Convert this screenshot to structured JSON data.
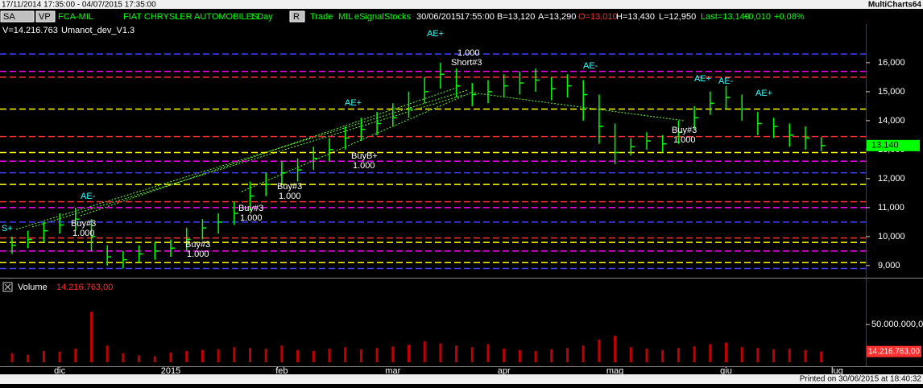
{
  "window": {
    "range": "17/11/2014 17:35:00 - 04/07/2015 17:35:00",
    "app": "MultiCharts64"
  },
  "toolbar": [
    "SA",
    "VP",
    "FCA-MIL",
    "FIAT CHRYSLER AUTOMOBILES",
    "1 Day",
    "R",
    "Trade",
    "MIL",
    "eSignal",
    "Stocks",
    "30/06/2015",
    "17:55:00",
    "B=13,120",
    "A=13,290",
    "O=13,010",
    "H=13,430",
    "L=12,950",
    "Last=13,140",
    "+0,010",
    "+0,08%"
  ],
  "info": [
    "V=14.216.763",
    "Umanot_dev_V1.3"
  ],
  "footer": "Printed on 30/06/2015 at 18:40:32",
  "annotations": [
    "AE+",
    "1.000",
    "Short#3",
    "BuyB+",
    "1.000",
    "Buy#3",
    "1.000",
    "Buy#3",
    "1.000",
    "Buy#3",
    "1.000",
    "Buy#3",
    "1.000",
    "Buy#3",
    "1.000",
    "AE+",
    "AE-",
    "AE-",
    "AE+",
    "AE-",
    "AE+",
    "S+"
  ],
  "chart_data": [
    {
      "type": "ohlc",
      "color": "#00ff00",
      "close": [
        9.7,
        9.9,
        10.2,
        10.4,
        10.6,
        10.0,
        9.3,
        9.2,
        9.4,
        9.5,
        9.6,
        9.9,
        10.3,
        10.5,
        10.8,
        11.4,
        11.8,
        12.2,
        12.3,
        12.7,
        13.0,
        13.4,
        13.7,
        13.9,
        14.1,
        14.4,
        15.0,
        15.6,
        15.2,
        14.9,
        15.0,
        15.2,
        15.3,
        15.4,
        15.1,
        15.2,
        14.9,
        13.8,
        12.9,
        13.1,
        13.3,
        13.2,
        13.6,
        14.1,
        14.6,
        14.8,
        14.4,
        13.9,
        13.8,
        13.5,
        13.4,
        13.14,
        null
      ],
      "high": [
        10.0,
        10.2,
        10.5,
        10.8,
        11.0,
        10.6,
        9.7,
        9.5,
        9.7,
        9.8,
        9.9,
        10.3,
        10.6,
        10.8,
        11.2,
        11.9,
        12.2,
        12.6,
        12.7,
        13.1,
        13.4,
        13.8,
        14.1,
        14.3,
        14.6,
        15.0,
        15.5,
        16.0,
        15.8,
        15.3,
        15.4,
        15.6,
        15.7,
        15.8,
        15.5,
        15.6,
        15.4,
        14.9,
        13.9,
        13.4,
        13.6,
        13.5,
        14.0,
        14.5,
        15.0,
        15.2,
        14.9,
        14.3,
        14.1,
        13.9,
        13.8,
        13.43,
        null
      ],
      "low": [
        9.4,
        9.6,
        9.8,
        10.1,
        10.2,
        9.5,
        9.0,
        8.9,
        9.1,
        9.2,
        9.3,
        9.5,
        9.9,
        10.1,
        10.4,
        10.9,
        11.4,
        11.8,
        11.9,
        12.3,
        12.6,
        13.0,
        13.3,
        13.5,
        13.8,
        14.1,
        14.6,
        15.1,
        14.8,
        14.5,
        14.6,
        14.8,
        14.9,
        15.0,
        14.7,
        14.8,
        14.0,
        13.2,
        12.5,
        12.8,
        13.0,
        12.9,
        13.2,
        13.7,
        14.2,
        14.4,
        14.0,
        13.5,
        13.4,
        13.1,
        13.0,
        12.95,
        null
      ],
      "last_price": 13.14,
      "last_price_label": "13,140",
      "ylim": [
        8.58,
        17.33
      ],
      "yticks": [
        {
          "value": 9,
          "label": "9,000"
        },
        {
          "value": 10,
          "label": "10,000"
        },
        {
          "value": 11,
          "label": "11,000"
        },
        {
          "value": 12,
          "label": "12,000"
        },
        {
          "value": 13,
          "label": "13,000"
        },
        {
          "value": 14,
          "label": "14,000"
        },
        {
          "value": 15,
          "label": "15,000"
        },
        {
          "value": 16,
          "label": "16,000"
        }
      ],
      "levels": [
        {
          "value": 16.3,
          "color": "#4040ff"
        },
        {
          "value": 15.7,
          "color": "#ff00ff"
        },
        {
          "value": 15.5,
          "color": "#ff3030"
        },
        {
          "value": 14.4,
          "color": "#ffff00"
        },
        {
          "value": 13.45,
          "color": "#ff3030"
        },
        {
          "value": 12.9,
          "color": "#ffff00"
        },
        {
          "value": 12.6,
          "color": "#ff00ff"
        },
        {
          "value": 12.2,
          "color": "#4040ff"
        },
        {
          "value": 11.8,
          "color": "#ffff00"
        },
        {
          "value": 11.2,
          "color": "#ff3030"
        },
        {
          "value": 11.0,
          "color": "#ff00ff"
        },
        {
          "value": 10.5,
          "color": "#4040ff"
        },
        {
          "value": 9.95,
          "color": "#ff3030"
        },
        {
          "value": 9.8,
          "color": "#ffff00"
        },
        {
          "value": 9.5,
          "color": "#ff00ff"
        },
        {
          "value": 9.1,
          "color": "#ffff00"
        },
        {
          "value": 8.9,
          "color": "#4040ff"
        }
      ]
    },
    {
      "type": "bar",
      "title": "Volume",
      "subtitle": "14.216.763,00",
      "color": "#c00000",
      "categories": [
        null,
        null,
        null,
        "dic",
        null,
        null,
        null,
        null,
        null,
        null,
        "2015",
        null,
        null,
        null,
        null,
        null,
        null,
        "feb",
        null,
        null,
        null,
        null,
        null,
        null,
        "mar",
        null,
        null,
        null,
        null,
        null,
        null,
        "apr",
        null,
        null,
        null,
        null,
        null,
        null,
        "mag",
        null,
        null,
        null,
        null,
        null,
        null,
        "giu",
        null,
        null,
        null,
        null,
        null,
        null,
        "lug"
      ],
      "values": [
        12000000,
        10000000,
        15000000,
        14000000,
        18000000,
        67000000,
        22000000,
        12000000,
        9000000,
        8000000,
        13000000,
        15000000,
        16000000,
        17000000,
        20000000,
        19000000,
        18000000,
        22000000,
        16000000,
        15000000,
        18000000,
        20000000,
        17000000,
        19000000,
        21000000,
        23000000,
        28000000,
        25000000,
        22000000,
        20000000,
        24000000,
        18000000,
        16000000,
        15000000,
        17000000,
        19000000,
        22000000,
        30000000,
        35000000,
        20000000,
        18000000,
        16000000,
        19000000,
        21000000,
        24000000,
        26000000,
        20000000,
        19000000,
        17000000,
        18000000,
        16000000,
        14216763,
        null
      ],
      "last_value_label": "14.216.763,00",
      "ylim": [
        0,
        110000000
      ],
      "yticks": [
        {
          "value": 50000000,
          "label": "50.000.000,00"
        }
      ]
    }
  ]
}
